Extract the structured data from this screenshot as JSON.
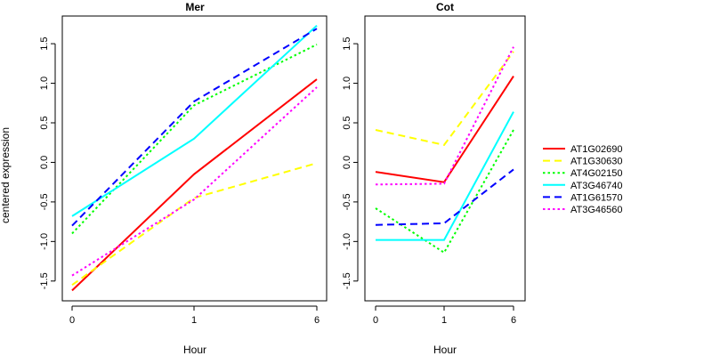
{
  "chart_data": {
    "type": "line",
    "ylabel": "centered expression",
    "xlabel": "Hour",
    "categories": [
      "0",
      "1",
      "6"
    ],
    "ylim": [
      -1.75,
      1.85
    ],
    "yticks": [
      -1.5,
      -1.0,
      -0.5,
      0.0,
      0.5,
      1.0,
      1.5
    ],
    "ytick_labels": [
      "-1.5",
      "-1.0",
      "-0.5",
      "0.0",
      "0.5",
      "1.0",
      "1.5"
    ],
    "legend_position": "right",
    "grid": false,
    "panels": [
      {
        "title": "Mer",
        "series": [
          {
            "name": "AT1G02690",
            "color": "#ff0000",
            "dash": "solid",
            "values": [
              -1.62,
              -0.15,
              1.05
            ]
          },
          {
            "name": "AT1G30630",
            "color": "#ffff00",
            "dash": "dashed",
            "values": [
              -1.55,
              -0.45,
              -0.01
            ]
          },
          {
            "name": "AT4G02150",
            "color": "#00ff00",
            "dash": "dotted",
            "values": [
              -0.9,
              0.72,
              1.49
            ]
          },
          {
            "name": "AT3G46740",
            "color": "#00ffff",
            "dash": "solid",
            "values": [
              -0.68,
              0.3,
              1.73
            ]
          },
          {
            "name": "AT1G61570",
            "color": "#0000ff",
            "dash": "dashed",
            "values": [
              -0.8,
              0.77,
              1.69
            ]
          },
          {
            "name": "AT3G46560",
            "color": "#ff00ff",
            "dash": "dotted",
            "values": [
              -1.43,
              -0.47,
              0.95
            ]
          }
        ]
      },
      {
        "title": "Cot",
        "series": [
          {
            "name": "AT1G02690",
            "color": "#ff0000",
            "dash": "solid",
            "values": [
              -0.12,
              -0.25,
              1.09
            ]
          },
          {
            "name": "AT1G30630",
            "color": "#ffff00",
            "dash": "dashed",
            "values": [
              0.41,
              0.22,
              1.4
            ]
          },
          {
            "name": "AT4G02150",
            "color": "#00ff00",
            "dash": "dotted",
            "values": [
              -0.58,
              -1.14,
              0.41
            ]
          },
          {
            "name": "AT3G46740",
            "color": "#00ffff",
            "dash": "solid",
            "values": [
              -0.98,
              -0.98,
              0.64
            ]
          },
          {
            "name": "AT1G61570",
            "color": "#0000ff",
            "dash": "dashed",
            "values": [
              -0.79,
              -0.77,
              -0.09
            ]
          },
          {
            "name": "AT3G46560",
            "color": "#ff00ff",
            "dash": "dotted",
            "values": [
              -0.28,
              -0.27,
              1.46
            ]
          }
        ]
      }
    ],
    "legend": [
      {
        "name": "AT1G02690",
        "color": "#ff0000",
        "dash": "solid"
      },
      {
        "name": "AT1G30630",
        "color": "#ffff00",
        "dash": "dashed"
      },
      {
        "name": "AT4G02150",
        "color": "#00ff00",
        "dash": "dotted"
      },
      {
        "name": "AT3G46740",
        "color": "#00ffff",
        "dash": "solid"
      },
      {
        "name": "AT1G61570",
        "color": "#0000ff",
        "dash": "dashed"
      },
      {
        "name": "AT3G46560",
        "color": "#ff00ff",
        "dash": "dotted"
      }
    ]
  }
}
